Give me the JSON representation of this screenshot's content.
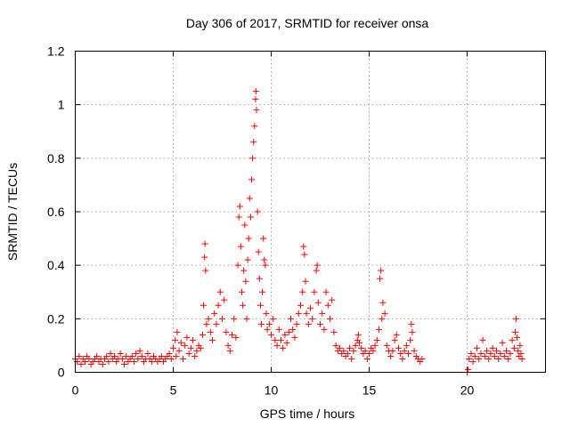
{
  "chart_data": {
    "type": "scatter",
    "title": "Day 306 of 2017, SRMTID for receiver onsa",
    "xlabel": "GPS time / hours",
    "ylabel": "SRMTID / TECUs",
    "xlim": [
      0,
      24
    ],
    "ylim": [
      0,
      1.2
    ],
    "xticks": [
      0,
      5,
      10,
      15,
      20
    ],
    "xtick_labels": [
      "0",
      "5",
      "10",
      "15",
      "20"
    ],
    "yticks": [
      0,
      0.2,
      0.4,
      0.6,
      0.8,
      1,
      1.2
    ],
    "ytick_labels": [
      "0",
      "0.2",
      "0.4",
      "0.6",
      "0.8",
      "1",
      "1.2"
    ],
    "grid": true,
    "marker": "plus",
    "color": "#ff0000",
    "series": [
      {
        "name": "onsa",
        "points": [
          [
            0.0,
            0.05
          ],
          [
            0.1,
            0.04
          ],
          [
            0.2,
            0.06
          ],
          [
            0.3,
            0.03
          ],
          [
            0.4,
            0.05
          ],
          [
            0.5,
            0.04
          ],
          [
            0.6,
            0.06
          ],
          [
            0.7,
            0.05
          ],
          [
            0.8,
            0.03
          ],
          [
            0.9,
            0.04
          ],
          [
            1.0,
            0.05
          ],
          [
            1.1,
            0.06
          ],
          [
            1.2,
            0.04
          ],
          [
            1.3,
            0.05
          ],
          [
            1.4,
            0.03
          ],
          [
            1.5,
            0.05
          ],
          [
            1.6,
            0.06
          ],
          [
            1.7,
            0.04
          ],
          [
            1.8,
            0.07
          ],
          [
            1.9,
            0.05
          ],
          [
            2.0,
            0.06
          ],
          [
            2.1,
            0.04
          ],
          [
            2.2,
            0.05
          ],
          [
            2.3,
            0.07
          ],
          [
            2.4,
            0.05
          ],
          [
            2.5,
            0.03
          ],
          [
            2.6,
            0.06
          ],
          [
            2.7,
            0.04
          ],
          [
            2.8,
            0.05
          ],
          [
            2.9,
            0.06
          ],
          [
            3.0,
            0.04
          ],
          [
            3.1,
            0.07
          ],
          [
            3.2,
            0.05
          ],
          [
            3.3,
            0.08
          ],
          [
            3.4,
            0.06
          ],
          [
            3.5,
            0.04
          ],
          [
            3.6,
            0.05
          ],
          [
            3.7,
            0.07
          ],
          [
            3.8,
            0.05
          ],
          [
            3.9,
            0.04
          ],
          [
            4.0,
            0.06
          ],
          [
            4.1,
            0.05
          ],
          [
            4.2,
            0.04
          ],
          [
            4.3,
            0.05
          ],
          [
            4.4,
            0.06
          ],
          [
            4.5,
            0.04
          ],
          [
            4.6,
            0.05
          ],
          [
            4.7,
            0.06
          ],
          [
            4.8,
            0.07
          ],
          [
            4.9,
            0.05
          ],
          [
            5.0,
            0.09
          ],
          [
            5.1,
            0.12
          ],
          [
            5.15,
            0.06
          ],
          [
            5.2,
            0.15
          ],
          [
            5.3,
            0.08
          ],
          [
            5.4,
            0.11
          ],
          [
            5.5,
            0.05
          ],
          [
            5.6,
            0.1
          ],
          [
            5.7,
            0.13
          ],
          [
            5.8,
            0.07
          ],
          [
            5.9,
            0.09
          ],
          [
            6.0,
            0.12
          ],
          [
            6.1,
            0.06
          ],
          [
            6.2,
            0.08
          ],
          [
            6.3,
            0.1
          ],
          [
            6.4,
            0.09
          ],
          [
            6.5,
            0.14
          ],
          [
            6.55,
            0.25
          ],
          [
            6.6,
            0.43
          ],
          [
            6.62,
            0.48
          ],
          [
            6.65,
            0.38
          ],
          [
            6.7,
            0.18
          ],
          [
            6.8,
            0.2
          ],
          [
            6.9,
            0.15
          ],
          [
            7.0,
            0.12
          ],
          [
            7.1,
            0.22
          ],
          [
            7.2,
            0.18
          ],
          [
            7.3,
            0.25
          ],
          [
            7.4,
            0.3
          ],
          [
            7.5,
            0.2
          ],
          [
            7.6,
            0.27
          ],
          [
            7.7,
            0.15
          ],
          [
            7.8,
            0.1
          ],
          [
            7.9,
            0.08
          ],
          [
            8.0,
            0.14
          ],
          [
            8.1,
            0.2
          ],
          [
            8.2,
            0.13
          ],
          [
            8.3,
            0.4
          ],
          [
            8.35,
            0.58
          ],
          [
            8.4,
            0.62
          ],
          [
            8.45,
            0.47
          ],
          [
            8.5,
            0.3
          ],
          [
            8.55,
            0.25
          ],
          [
            8.6,
            0.38
          ],
          [
            8.65,
            0.55
          ],
          [
            8.7,
            0.34
          ],
          [
            8.75,
            0.2
          ],
          [
            8.8,
            0.42
          ],
          [
            8.85,
            0.5
          ],
          [
            8.9,
            0.65
          ],
          [
            8.95,
            0.58
          ],
          [
            9.0,
            0.72
          ],
          [
            9.05,
            0.8
          ],
          [
            9.1,
            0.86
          ],
          [
            9.15,
            0.92
          ],
          [
            9.2,
            1.02
          ],
          [
            9.22,
            1.05
          ],
          [
            9.25,
            0.98
          ],
          [
            9.3,
            0.6
          ],
          [
            9.35,
            0.45
          ],
          [
            9.4,
            0.35
          ],
          [
            9.45,
            0.25
          ],
          [
            9.5,
            0.18
          ],
          [
            9.55,
            0.3
          ],
          [
            9.6,
            0.5
          ],
          [
            9.65,
            0.42
          ],
          [
            9.7,
            0.4
          ],
          [
            9.75,
            0.22
          ],
          [
            9.8,
            0.16
          ],
          [
            9.9,
            0.18
          ],
          [
            10.0,
            0.14
          ],
          [
            10.1,
            0.2
          ],
          [
            10.2,
            0.12
          ],
          [
            10.3,
            0.1
          ],
          [
            10.4,
            0.16
          ],
          [
            10.5,
            0.12
          ],
          [
            10.6,
            0.09
          ],
          [
            10.7,
            0.14
          ],
          [
            10.8,
            0.11
          ],
          [
            10.9,
            0.15
          ],
          [
            11.0,
            0.2
          ],
          [
            11.1,
            0.16
          ],
          [
            11.2,
            0.13
          ],
          [
            11.3,
            0.18
          ],
          [
            11.4,
            0.22
          ],
          [
            11.5,
            0.25
          ],
          [
            11.6,
            0.3
          ],
          [
            11.65,
            0.47
          ],
          [
            11.7,
            0.44
          ],
          [
            11.75,
            0.34
          ],
          [
            11.8,
            0.22
          ],
          [
            11.9,
            0.18
          ],
          [
            12.0,
            0.24
          ],
          [
            12.1,
            0.2
          ],
          [
            12.2,
            0.3
          ],
          [
            12.3,
            0.38
          ],
          [
            12.35,
            0.4
          ],
          [
            12.4,
            0.26
          ],
          [
            12.5,
            0.18
          ],
          [
            12.6,
            0.22
          ],
          [
            12.7,
            0.16
          ],
          [
            12.8,
            0.3
          ],
          [
            12.9,
            0.25
          ],
          [
            13.0,
            0.2
          ],
          [
            13.1,
            0.27
          ],
          [
            13.2,
            0.15
          ],
          [
            13.3,
            0.1
          ],
          [
            13.4,
            0.08
          ],
          [
            13.5,
            0.09
          ],
          [
            13.6,
            0.07
          ],
          [
            13.7,
            0.08
          ],
          [
            13.8,
            0.06
          ],
          [
            13.9,
            0.07
          ],
          [
            14.0,
            0.09
          ],
          [
            14.1,
            0.05
          ],
          [
            14.2,
            0.08
          ],
          [
            14.3,
            0.1
          ],
          [
            14.4,
            0.12
          ],
          [
            14.45,
            0.14
          ],
          [
            14.5,
            0.11
          ],
          [
            14.6,
            0.09
          ],
          [
            14.7,
            0.07
          ],
          [
            14.8,
            0.08
          ],
          [
            14.9,
            0.05
          ],
          [
            15.0,
            0.07
          ],
          [
            15.1,
            0.09
          ],
          [
            15.2,
            0.08
          ],
          [
            15.3,
            0.1
          ],
          [
            15.4,
            0.12
          ],
          [
            15.5,
            0.16
          ],
          [
            15.55,
            0.35
          ],
          [
            15.6,
            0.38
          ],
          [
            15.65,
            0.2
          ],
          [
            15.7,
            0.26
          ],
          [
            15.8,
            0.22
          ],
          [
            15.9,
            0.1
          ],
          [
            16.0,
            0.08
          ],
          [
            16.1,
            0.06
          ],
          [
            16.2,
            0.08
          ],
          [
            16.3,
            0.12
          ],
          [
            16.4,
            0.14
          ],
          [
            16.5,
            0.09
          ],
          [
            16.6,
            0.07
          ],
          [
            16.7,
            0.05
          ],
          [
            16.8,
            0.08
          ],
          [
            16.9,
            0.1
          ],
          [
            17.0,
            0.07
          ],
          [
            17.1,
            0.12
          ],
          [
            17.15,
            0.18
          ],
          [
            17.2,
            0.15
          ],
          [
            17.3,
            0.08
          ],
          [
            17.4,
            0.06
          ],
          [
            17.5,
            0.05
          ],
          [
            17.6,
            0.04
          ],
          [
            17.7,
            0.05
          ],
          [
            20.0,
            0.0
          ],
          [
            20.05,
            0.01
          ],
          [
            20.1,
            0.05
          ],
          [
            20.2,
            0.07
          ],
          [
            20.3,
            0.04
          ],
          [
            20.4,
            0.06
          ],
          [
            20.5,
            0.09
          ],
          [
            20.6,
            0.05
          ],
          [
            20.7,
            0.07
          ],
          [
            20.8,
            0.12
          ],
          [
            20.9,
            0.06
          ],
          [
            21.0,
            0.08
          ],
          [
            21.1,
            0.05
          ],
          [
            21.2,
            0.07
          ],
          [
            21.3,
            0.09
          ],
          [
            21.4,
            0.06
          ],
          [
            21.5,
            0.08
          ],
          [
            21.6,
            0.05
          ],
          [
            21.7,
            0.07
          ],
          [
            21.8,
            0.11
          ],
          [
            21.9,
            0.06
          ],
          [
            22.0,
            0.08
          ],
          [
            22.1,
            0.05
          ],
          [
            22.2,
            0.07
          ],
          [
            22.3,
            0.12
          ],
          [
            22.4,
            0.09
          ],
          [
            22.45,
            0.15
          ],
          [
            22.5,
            0.2
          ],
          [
            22.55,
            0.13
          ],
          [
            22.6,
            0.08
          ],
          [
            22.65,
            0.06
          ],
          [
            22.7,
            0.1
          ],
          [
            22.75,
            0.07
          ],
          [
            22.8,
            0.05
          ]
        ]
      }
    ]
  }
}
